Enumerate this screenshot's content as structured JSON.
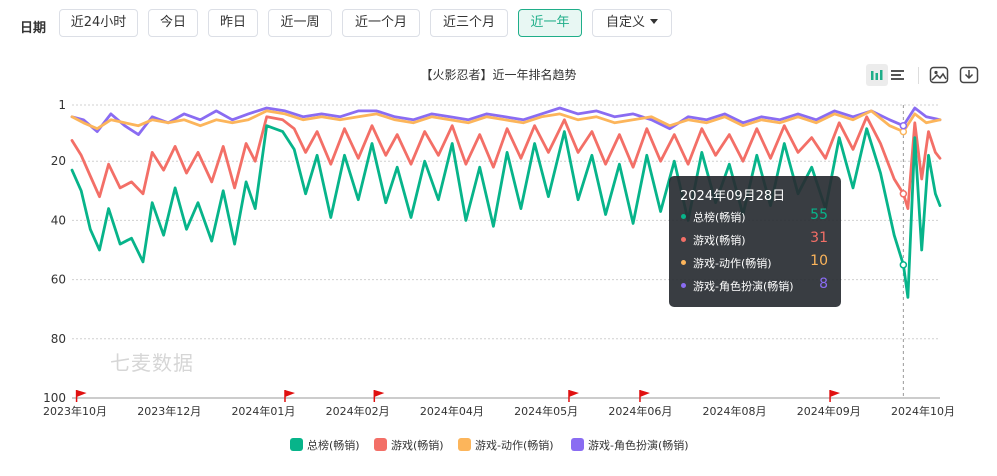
{
  "filters": {
    "label": "日期",
    "buttons": [
      "近24小时",
      "今日",
      "昨日",
      "近一周",
      "近一个月",
      "近三个月",
      "近一年",
      "自定义"
    ],
    "active_index": 6
  },
  "chart_title": "【火影忍者】近一年排名趋势",
  "watermark": "七麦数据",
  "tools": [
    "bar-chart-icon",
    "list-icon",
    "image-icon",
    "download-icon"
  ],
  "tooltip": {
    "date": "2024年09月28日",
    "rows": [
      {
        "name": "总榜(畅销)",
        "value": "55",
        "color": "#07b48a"
      },
      {
        "name": "游戏(畅销)",
        "value": "31",
        "color": "#f36f67"
      },
      {
        "name": "游戏-动作(畅销)",
        "value": "10",
        "color": "#fcb55b"
      },
      {
        "name": "游戏-角色扮演(畅销)",
        "value": "8",
        "color": "#8a6cf2"
      }
    ]
  },
  "colors": {
    "accent": "#1fae89",
    "grid": "#d0d0d0",
    "flag": "#e01010"
  },
  "chart_data": {
    "type": "line",
    "title": "【火影忍者】近一年排名趋势",
    "y_inverted": true,
    "ylim": [
      1,
      100
    ],
    "y_ticks": [
      1,
      20,
      40,
      60,
      80,
      100
    ],
    "x_ticks": [
      "2023年10月",
      "2023年12月",
      "2024年01月",
      "2024年02月",
      "2024年04月",
      "2024年05月",
      "2024年06月",
      "2024年08月",
      "2024年09月",
      "2024年10月"
    ],
    "x_range": [
      "2023-10-01",
      "2024-10-14"
    ],
    "marker_dates": [
      "2023-10-03",
      "2024-01-02",
      "2024-02-10",
      "2024-05-05",
      "2024-06-05",
      "2024-08-27"
    ],
    "hover_date": "2024-09-28",
    "series": [
      {
        "name": "总榜(畅销)",
        "color": "#07b48a",
        "points": [
          [
            "2023-10-01",
            23
          ],
          [
            "2023-10-05",
            30
          ],
          [
            "2023-10-09",
            43
          ],
          [
            "2023-10-13",
            50
          ],
          [
            "2023-10-17",
            36
          ],
          [
            "2023-10-22",
            48
          ],
          [
            "2023-10-27",
            46
          ],
          [
            "2023-11-01",
            54
          ],
          [
            "2023-11-05",
            34
          ],
          [
            "2023-11-10",
            45
          ],
          [
            "2023-11-15",
            29
          ],
          [
            "2023-11-20",
            43
          ],
          [
            "2023-11-25",
            34
          ],
          [
            "2023-12-01",
            47
          ],
          [
            "2023-12-06",
            30
          ],
          [
            "2023-12-11",
            48
          ],
          [
            "2023-12-16",
            27
          ],
          [
            "2023-12-20",
            36
          ],
          [
            "2023-12-25",
            8
          ],
          [
            "2024-01-01",
            10
          ],
          [
            "2024-01-06",
            16
          ],
          [
            "2024-01-11",
            31
          ],
          [
            "2024-01-16",
            18
          ],
          [
            "2024-01-22",
            39
          ],
          [
            "2024-01-28",
            18
          ],
          [
            "2024-02-03",
            33
          ],
          [
            "2024-02-09",
            14
          ],
          [
            "2024-02-15",
            34
          ],
          [
            "2024-02-20",
            22
          ],
          [
            "2024-02-26",
            39
          ],
          [
            "2024-03-03",
            20
          ],
          [
            "2024-03-09",
            33
          ],
          [
            "2024-03-15",
            14
          ],
          [
            "2024-03-21",
            40
          ],
          [
            "2024-03-27",
            22
          ],
          [
            "2024-04-02",
            42
          ],
          [
            "2024-04-08",
            17
          ],
          [
            "2024-04-14",
            36
          ],
          [
            "2024-04-20",
            14
          ],
          [
            "2024-04-26",
            32
          ],
          [
            "2024-05-03",
            10
          ],
          [
            "2024-05-09",
            33
          ],
          [
            "2024-05-15",
            18
          ],
          [
            "2024-05-21",
            38
          ],
          [
            "2024-05-27",
            21
          ],
          [
            "2024-06-02",
            41
          ],
          [
            "2024-06-08",
            18
          ],
          [
            "2024-06-14",
            37
          ],
          [
            "2024-06-20",
            20
          ],
          [
            "2024-06-26",
            40
          ],
          [
            "2024-07-02",
            17
          ],
          [
            "2024-07-08",
            34
          ],
          [
            "2024-07-14",
            21
          ],
          [
            "2024-07-20",
            38
          ],
          [
            "2024-07-26",
            18
          ],
          [
            "2024-08-01",
            35
          ],
          [
            "2024-08-07",
            14
          ],
          [
            "2024-08-13",
            31
          ],
          [
            "2024-08-19",
            22
          ],
          [
            "2024-08-25",
            36
          ],
          [
            "2024-08-31",
            12
          ],
          [
            "2024-09-06",
            29
          ],
          [
            "2024-09-12",
            9
          ],
          [
            "2024-09-18",
            24
          ],
          [
            "2024-09-24",
            45
          ],
          [
            "2024-09-28",
            55
          ],
          [
            "2024-09-30",
            66
          ],
          [
            "2024-10-03",
            12
          ],
          [
            "2024-10-06",
            50
          ],
          [
            "2024-10-09",
            18
          ],
          [
            "2024-10-12",
            31
          ],
          [
            "2024-10-14",
            35
          ]
        ]
      },
      {
        "name": "游戏(畅销)",
        "color": "#f36f67",
        "points": [
          [
            "2023-10-01",
            13
          ],
          [
            "2023-10-05",
            18
          ],
          [
            "2023-10-09",
            25
          ],
          [
            "2023-10-13",
            32
          ],
          [
            "2023-10-17",
            21
          ],
          [
            "2023-10-22",
            29
          ],
          [
            "2023-10-27",
            27
          ],
          [
            "2023-11-01",
            31
          ],
          [
            "2023-11-05",
            17
          ],
          [
            "2023-11-10",
            23
          ],
          [
            "2023-11-15",
            15
          ],
          [
            "2023-11-20",
            24
          ],
          [
            "2023-11-25",
            17
          ],
          [
            "2023-12-01",
            27
          ],
          [
            "2023-12-06",
            15
          ],
          [
            "2023-12-11",
            29
          ],
          [
            "2023-12-16",
            14
          ],
          [
            "2023-12-20",
            20
          ],
          [
            "2023-12-25",
            5
          ],
          [
            "2024-01-01",
            6
          ],
          [
            "2024-01-06",
            9
          ],
          [
            "2024-01-11",
            17
          ],
          [
            "2024-01-16",
            10
          ],
          [
            "2024-01-22",
            21
          ],
          [
            "2024-01-28",
            9
          ],
          [
            "2024-02-03",
            19
          ],
          [
            "2024-02-09",
            8
          ],
          [
            "2024-02-15",
            18
          ],
          [
            "2024-02-20",
            11
          ],
          [
            "2024-02-26",
            21
          ],
          [
            "2024-03-03",
            10
          ],
          [
            "2024-03-09",
            18
          ],
          [
            "2024-03-15",
            8
          ],
          [
            "2024-03-21",
            21
          ],
          [
            "2024-03-27",
            11
          ],
          [
            "2024-04-02",
            22
          ],
          [
            "2024-04-08",
            9
          ],
          [
            "2024-04-14",
            19
          ],
          [
            "2024-04-20",
            8
          ],
          [
            "2024-04-26",
            17
          ],
          [
            "2024-05-03",
            6
          ],
          [
            "2024-05-09",
            17
          ],
          [
            "2024-05-15",
            10
          ],
          [
            "2024-05-21",
            21
          ],
          [
            "2024-05-27",
            11
          ],
          [
            "2024-06-02",
            22
          ],
          [
            "2024-06-08",
            9
          ],
          [
            "2024-06-14",
            20
          ],
          [
            "2024-06-20",
            11
          ],
          [
            "2024-06-26",
            21
          ],
          [
            "2024-07-02",
            9
          ],
          [
            "2024-07-08",
            18
          ],
          [
            "2024-07-14",
            11
          ],
          [
            "2024-07-20",
            20
          ],
          [
            "2024-07-26",
            9
          ],
          [
            "2024-08-01",
            19
          ],
          [
            "2024-08-07",
            8
          ],
          [
            "2024-08-13",
            17
          ],
          [
            "2024-08-19",
            12
          ],
          [
            "2024-08-25",
            19
          ],
          [
            "2024-08-31",
            7
          ],
          [
            "2024-09-06",
            16
          ],
          [
            "2024-09-12",
            5
          ],
          [
            "2024-09-18",
            14
          ],
          [
            "2024-09-24",
            26
          ],
          [
            "2024-09-28",
            31
          ],
          [
            "2024-09-30",
            36
          ],
          [
            "2024-10-03",
            7
          ],
          [
            "2024-10-06",
            26
          ],
          [
            "2024-10-09",
            10
          ],
          [
            "2024-10-12",
            17
          ],
          [
            "2024-10-14",
            19
          ]
        ]
      },
      {
        "name": "游戏-动作(畅销)",
        "color": "#fcb55b",
        "points": [
          [
            "2023-10-01",
            5
          ],
          [
            "2023-10-06",
            7
          ],
          [
            "2023-10-12",
            9
          ],
          [
            "2023-10-18",
            6
          ],
          [
            "2023-10-24",
            7
          ],
          [
            "2023-10-30",
            8
          ],
          [
            "2023-11-05",
            6
          ],
          [
            "2023-11-12",
            7
          ],
          [
            "2023-11-19",
            6
          ],
          [
            "2023-11-26",
            8
          ],
          [
            "2023-12-03",
            6
          ],
          [
            "2023-12-10",
            7
          ],
          [
            "2023-12-17",
            6
          ],
          [
            "2023-12-25",
            3
          ],
          [
            "2024-01-02",
            4
          ],
          [
            "2024-01-10",
            6
          ],
          [
            "2024-01-18",
            5
          ],
          [
            "2024-01-26",
            6
          ],
          [
            "2024-02-03",
            5
          ],
          [
            "2024-02-11",
            4
          ],
          [
            "2024-02-19",
            6
          ],
          [
            "2024-02-27",
            7
          ],
          [
            "2024-03-06",
            5
          ],
          [
            "2024-03-14",
            6
          ],
          [
            "2024-03-22",
            7
          ],
          [
            "2024-03-30",
            5
          ],
          [
            "2024-04-07",
            6
          ],
          [
            "2024-04-15",
            7
          ],
          [
            "2024-04-23",
            5
          ],
          [
            "2024-05-01",
            4
          ],
          [
            "2024-05-09",
            6
          ],
          [
            "2024-05-17",
            5
          ],
          [
            "2024-05-25",
            7
          ],
          [
            "2024-06-02",
            6
          ],
          [
            "2024-06-10",
            5
          ],
          [
            "2024-06-18",
            8
          ],
          [
            "2024-06-26",
            6
          ],
          [
            "2024-07-04",
            7
          ],
          [
            "2024-07-12",
            5
          ],
          [
            "2024-07-20",
            8
          ],
          [
            "2024-07-28",
            6
          ],
          [
            "2024-08-05",
            7
          ],
          [
            "2024-08-13",
            5
          ],
          [
            "2024-08-21",
            7
          ],
          [
            "2024-08-29",
            4
          ],
          [
            "2024-09-06",
            6
          ],
          [
            "2024-09-14",
            3
          ],
          [
            "2024-09-22",
            8
          ],
          [
            "2024-09-28",
            10
          ],
          [
            "2024-10-03",
            4
          ],
          [
            "2024-10-08",
            7
          ],
          [
            "2024-10-14",
            6
          ]
        ]
      },
      {
        "name": "游戏-角色扮演(畅销)",
        "color": "#8a6cf2",
        "points": [
          [
            "2023-10-01",
            5
          ],
          [
            "2023-10-06",
            6
          ],
          [
            "2023-10-12",
            10
          ],
          [
            "2023-10-18",
            4
          ],
          [
            "2023-10-24",
            8
          ],
          [
            "2023-10-30",
            11
          ],
          [
            "2023-11-05",
            5
          ],
          [
            "2023-11-12",
            7
          ],
          [
            "2023-11-19",
            4
          ],
          [
            "2023-11-26",
            6
          ],
          [
            "2023-12-03",
            3
          ],
          [
            "2023-12-10",
            6
          ],
          [
            "2023-12-17",
            4
          ],
          [
            "2023-12-25",
            2
          ],
          [
            "2024-01-02",
            3
          ],
          [
            "2024-01-10",
            5
          ],
          [
            "2024-01-18",
            4
          ],
          [
            "2024-01-26",
            5
          ],
          [
            "2024-02-03",
            3
          ],
          [
            "2024-02-11",
            3
          ],
          [
            "2024-02-19",
            5
          ],
          [
            "2024-02-27",
            6
          ],
          [
            "2024-03-06",
            4
          ],
          [
            "2024-03-14",
            5
          ],
          [
            "2024-03-22",
            6
          ],
          [
            "2024-03-30",
            4
          ],
          [
            "2024-04-07",
            5
          ],
          [
            "2024-04-15",
            6
          ],
          [
            "2024-04-23",
            4
          ],
          [
            "2024-05-01",
            2
          ],
          [
            "2024-05-09",
            4
          ],
          [
            "2024-05-17",
            3
          ],
          [
            "2024-05-25",
            5
          ],
          [
            "2024-06-02",
            4
          ],
          [
            "2024-06-10",
            6
          ],
          [
            "2024-06-18",
            9
          ],
          [
            "2024-06-26",
            5
          ],
          [
            "2024-07-04",
            6
          ],
          [
            "2024-07-12",
            4
          ],
          [
            "2024-07-20",
            7
          ],
          [
            "2024-07-28",
            5
          ],
          [
            "2024-08-05",
            6
          ],
          [
            "2024-08-13",
            4
          ],
          [
            "2024-08-21",
            6
          ],
          [
            "2024-08-29",
            3
          ],
          [
            "2024-09-06",
            5
          ],
          [
            "2024-09-14",
            3
          ],
          [
            "2024-09-22",
            6
          ],
          [
            "2024-09-28",
            8
          ],
          [
            "2024-10-03",
            2
          ],
          [
            "2024-10-08",
            5
          ],
          [
            "2024-10-14",
            6
          ]
        ]
      }
    ]
  }
}
